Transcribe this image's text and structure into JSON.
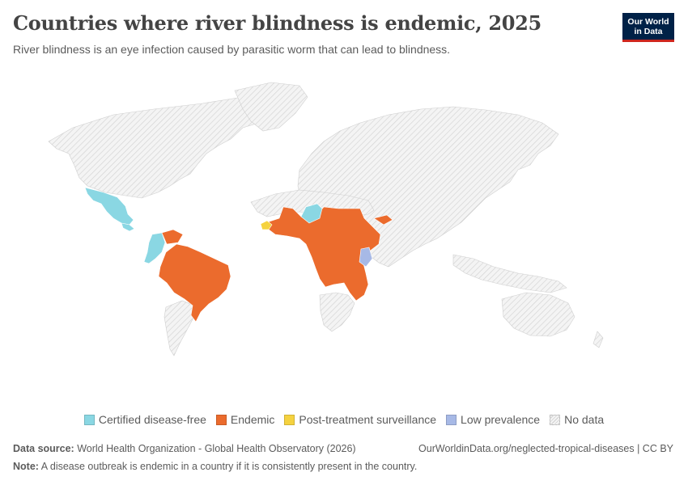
{
  "header": {
    "title": "Countries where river blindness is endemic, 2025",
    "subtitle": "River blindness is an eye infection caused by parasitic worm that can lead to blindness."
  },
  "logo": {
    "line1": "Our World",
    "line2": "in Data"
  },
  "colors": {
    "certified": "#8ad7e3",
    "endemic": "#eb6b2d",
    "surveillance": "#f5d23f",
    "low": "#a7b9e6",
    "nodata_fill": "#f2f2f2",
    "nodata_hatch": "#d6d6d6",
    "border": "#ffffff"
  },
  "legend": [
    {
      "label": "Certified disease-free",
      "color": "#8ad7e3"
    },
    {
      "label": "Endemic",
      "color": "#eb6b2d"
    },
    {
      "label": "Post-treatment surveillance",
      "color": "#f5d23f"
    },
    {
      "label": "Low prevalence",
      "color": "#a7b9e6"
    },
    {
      "label": "No data",
      "color": "hatch"
    }
  ],
  "footer": {
    "source_label": "Data source:",
    "source_text": "World Health Organization - Global Health Observatory (2026)",
    "url": "OurWorldinData.org/neglected-tropical-diseases | CC BY",
    "note_label": "Note:",
    "note_text": "A disease outbreak is endemic in a country if it is consistently present in the country."
  }
}
